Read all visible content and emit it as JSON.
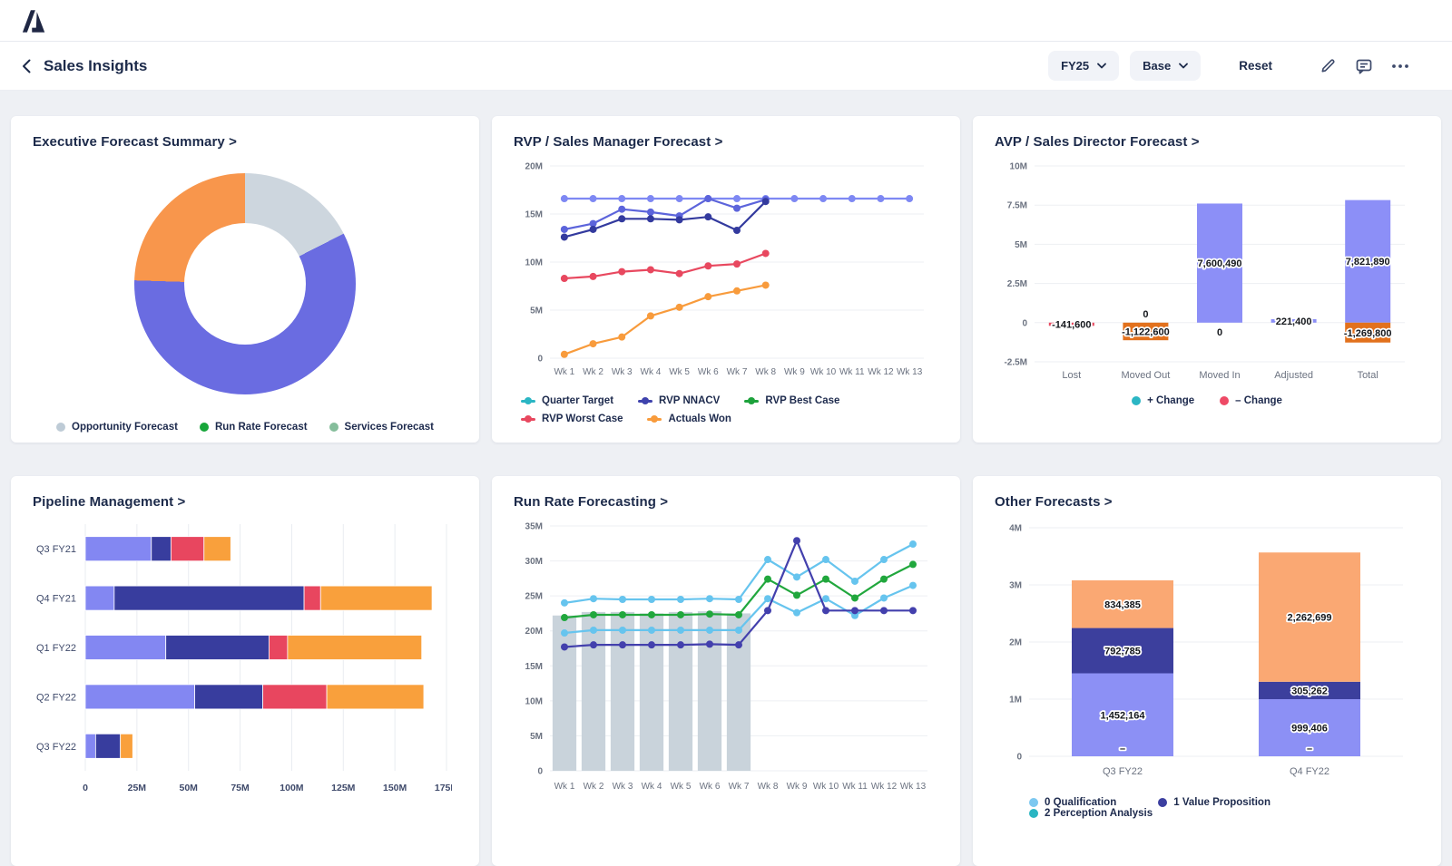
{
  "header": {
    "title": "Sales Insights",
    "period": "FY25",
    "scenario": "Base",
    "reset": "Reset"
  },
  "chart_data": [
    {
      "type": "pie",
      "title": "Executive Forecast Summary >",
      "donut": true,
      "slices": [
        {
          "label": "Opportunity Forecast",
          "pct": 17.5,
          "color": "#CDD6DE"
        },
        {
          "label": "Run Rate Forecast",
          "pct": 58,
          "color": "#6A6CE1"
        },
        {
          "label": "Services Forecast",
          "pct": 24.5,
          "color": "#F8964C"
        }
      ],
      "legend": [
        {
          "label": "Opportunity Forecast",
          "color": "#BECBD6"
        },
        {
          "label": "Run Rate Forecast",
          "color": "#17A63A"
        },
        {
          "label": "Services Forecast",
          "color": "#85BD9B"
        }
      ]
    },
    {
      "type": "line",
      "title": "RVP / Sales Manager Forecast >",
      "unit": "M",
      "x": [
        "Wk 1",
        "Wk 2",
        "Wk 3",
        "Wk 4",
        "Wk 5",
        "Wk 6",
        "Wk 7",
        "Wk 8",
        "Wk 9",
        "Wk 10",
        "Wk 11",
        "Wk 12",
        "Wk 13"
      ],
      "ylim": [
        0,
        20
      ],
      "yticks": [
        {
          "v": 0,
          "label": "0"
        },
        {
          "v": 5,
          "label": "5M"
        },
        {
          "v": 10,
          "label": "10M"
        },
        {
          "v": 15,
          "label": "15M"
        },
        {
          "v": 20,
          "label": "20M"
        }
      ],
      "series": [
        {
          "name": "Quarter Target",
          "color": "#7E88F3",
          "values": [
            16.6,
            16.6,
            16.6,
            16.6,
            16.6,
            16.6,
            16.6,
            16.6,
            16.6,
            16.6,
            16.6,
            16.6,
            16.6
          ]
        },
        {
          "name": "RVP Best Case",
          "color": "#5C64DB",
          "values": [
            13.4,
            14.0,
            15.5,
            15.2,
            14.8,
            16.6,
            15.6,
            16.5,
            null,
            null,
            null,
            null,
            null
          ]
        },
        {
          "name": "RVP NNACV",
          "color": "#333A9E",
          "values": [
            12.6,
            13.4,
            14.5,
            14.5,
            14.4,
            14.7,
            13.3,
            16.3,
            null,
            null,
            null,
            null,
            null
          ]
        },
        {
          "name": "RVP Worst Case",
          "color": "#E8485F",
          "values": [
            8.3,
            8.5,
            9.0,
            9.2,
            8.8,
            9.6,
            9.8,
            10.9,
            null,
            null,
            null,
            null,
            null
          ]
        },
        {
          "name": "Actuals Won",
          "color": "#F89B3C",
          "values": [
            0.4,
            1.5,
            2.2,
            4.4,
            5.3,
            6.4,
            7.0,
            7.6,
            null,
            null,
            null,
            null,
            null
          ]
        }
      ],
      "legend": [
        {
          "label": "Quarter Target",
          "color": "#2BB6C4"
        },
        {
          "label": "RVP NNACV",
          "color": "#3F43AD"
        },
        {
          "label": "RVP Best Case",
          "color": "#1DA23C"
        },
        {
          "label": "RVP Worst Case",
          "color": "#E8485F"
        },
        {
          "label": "Actuals Won",
          "color": "#F89B3C"
        }
      ]
    },
    {
      "type": "waterfall",
      "title": "AVP / Sales Director Forecast >",
      "unit": "M",
      "categories": [
        "Lost",
        "Moved Out",
        "Moved In",
        "Adjusted",
        "Total"
      ],
      "ylim": [
        -2.5,
        10
      ],
      "yticks": [
        {
          "v": -2.5,
          "label": "-2.5M"
        },
        {
          "v": 0,
          "label": "0"
        },
        {
          "v": 2.5,
          "label": "2.5M"
        },
        {
          "v": 5,
          "label": "5M"
        },
        {
          "v": 7.5,
          "label": "7.5M"
        },
        {
          "v": 10,
          "label": "10M"
        }
      ],
      "bars": [
        {
          "category": "Lost",
          "segments": [
            {
              "value": -0.1416,
              "color": "#E8485F",
              "label": "-141,600"
            }
          ]
        },
        {
          "category": "Moved Out",
          "zero_label": "0",
          "zero_side": "above",
          "segments": [
            {
              "value": -1.1226,
              "color": "#E2711D",
              "label": "-1,122,600"
            }
          ]
        },
        {
          "category": "Moved In",
          "zero_label": "0",
          "zero_side": "below",
          "segments": [
            {
              "value": 7.60049,
              "color": "#8C8FF7",
              "label": "7,600,490"
            }
          ]
        },
        {
          "category": "Adjusted",
          "segments": [
            {
              "value": 0.2214,
              "color": "#8C8FF7",
              "label": "221,400"
            }
          ]
        },
        {
          "category": "Total",
          "segments": [
            {
              "value": 7.82189,
              "color": "#8C8FF7",
              "label": "7,821,890"
            },
            {
              "value": -1.2698,
              "color": "#E2711D",
              "label": "-1,269,800"
            }
          ]
        }
      ],
      "legend": [
        {
          "label": "+ Change",
          "color": "#2BB6C4"
        },
        {
          "label": "– Change",
          "color": "#EE4A66"
        }
      ]
    },
    {
      "type": "hbar",
      "title": "Pipeline Management >",
      "unit": "M",
      "categories": [
        "Q3 FY21",
        "Q4 FY21",
        "Q1 FY22",
        "Q2 FY22",
        "Q3 FY22"
      ],
      "xlim": [
        0,
        175
      ],
      "xticks": [
        {
          "v": 0,
          "label": "0"
        },
        {
          "v": 25,
          "label": "25M"
        },
        {
          "v": 50,
          "label": "50M"
        },
        {
          "v": 75,
          "label": "75M"
        },
        {
          "v": 100,
          "label": "100M"
        },
        {
          "v": 125,
          "label": "125M"
        },
        {
          "v": 150,
          "label": "150M"
        },
        {
          "v": 175,
          "label": "175M"
        }
      ],
      "series": [
        {
          "id": "segment-1",
          "color": "#8387F2",
          "values": [
            32,
            14,
            39,
            53,
            5
          ]
        },
        {
          "id": "segment-2",
          "color": "#383D9E",
          "values": [
            9.5,
            92,
            50,
            33,
            12
          ]
        },
        {
          "id": "segment-3",
          "color": "#E8465F",
          "values": [
            16,
            8,
            9,
            31,
            0
          ]
        },
        {
          "id": "segment-4",
          "color": "#F9A03C",
          "values": [
            13,
            54,
            65,
            47,
            6
          ]
        }
      ]
    },
    {
      "type": "line",
      "title": "Run Rate Forecasting >",
      "unit": "M",
      "x": [
        "Wk 1",
        "Wk 2",
        "Wk 3",
        "Wk 4",
        "Wk 5",
        "Wk 6",
        "Wk 7",
        "Wk 8",
        "Wk 9",
        "Wk 10",
        "Wk 11",
        "Wk 12",
        "Wk 13"
      ],
      "ylim": [
        0,
        35
      ],
      "yticks": [
        {
          "v": 0,
          "label": "0"
        },
        {
          "v": 5,
          "label": "5M"
        },
        {
          "v": 10,
          "label": "10M"
        },
        {
          "v": 15,
          "label": "15M"
        },
        {
          "v": 20,
          "label": "20M"
        },
        {
          "v": 25,
          "label": "25M"
        },
        {
          "v": 30,
          "label": "30M"
        },
        {
          "v": 35,
          "label": "35M"
        }
      ],
      "bars": {
        "color": "#C9D3DB",
        "values": [
          22.2,
          22.7,
          22.7,
          22.5,
          22.7,
          22.8,
          22.5,
          null,
          null,
          null,
          null,
          null,
          null
        ]
      },
      "series": [
        {
          "id": "upper-sky",
          "color": "#66C4EE",
          "values": [
            24.0,
            24.6,
            24.5,
            24.5,
            24.5,
            24.6,
            24.5,
            30.2,
            27.7,
            30.2,
            27.1,
            30.2,
            32.4
          ]
        },
        {
          "id": "green",
          "color": "#21A73D",
          "values": [
            21.9,
            22.3,
            22.3,
            22.3,
            22.3,
            22.4,
            22.3,
            27.4,
            25.1,
            27.4,
            24.7,
            27.4,
            29.5
          ]
        },
        {
          "id": "lower-sky",
          "color": "#66C4EE",
          "values": [
            19.7,
            20.1,
            20.1,
            20.1,
            20.1,
            20.1,
            20.1,
            24.6,
            22.6,
            24.6,
            22.2,
            24.7,
            26.5
          ]
        },
        {
          "id": "indigo",
          "color": "#4340AD",
          "values": [
            17.7,
            18.0,
            18.0,
            18.0,
            18.0,
            18.1,
            18.0,
            22.9,
            32.9,
            22.9,
            22.9,
            22.9,
            22.9
          ]
        }
      ]
    },
    {
      "type": "vstack",
      "title": "Other Forecasts >",
      "unit": "M",
      "categories": [
        "Q3 FY22",
        "Q4 FY22"
      ],
      "ylim": [
        0,
        4
      ],
      "yticks": [
        {
          "v": 0,
          "label": "0"
        },
        {
          "v": 1,
          "label": "1M"
        },
        {
          "v": 2,
          "label": "2M"
        },
        {
          "v": 3,
          "label": "3M"
        },
        {
          "v": 4,
          "label": "4M"
        }
      ],
      "series": [
        {
          "name": "0 Qualification",
          "color": "#8C90F5",
          "values": [
            1.452164,
            0.999406
          ],
          "labels": [
            "1,452,164",
            "999,406"
          ]
        },
        {
          "name": "1 Value Proposition",
          "color": "#3C3F9D",
          "values": [
            0.792785,
            0.305262
          ],
          "labels": [
            "792,785",
            "305,262"
          ]
        },
        {
          "name": "2 Perception Analysis",
          "color": "#FAA873",
          "values": [
            0.834385,
            2.262699
          ],
          "labels": [
            "834,385",
            "2,262,699"
          ]
        }
      ],
      "base_labels": [
        "–",
        "–"
      ],
      "legend": [
        {
          "label": "0 Qualification",
          "color": "#7CC8F0"
        },
        {
          "label": "1 Value Proposition",
          "color": "#3C3FA0"
        },
        {
          "label": "2 Perception Analysis",
          "color": "#2AB5C2"
        }
      ]
    }
  ]
}
